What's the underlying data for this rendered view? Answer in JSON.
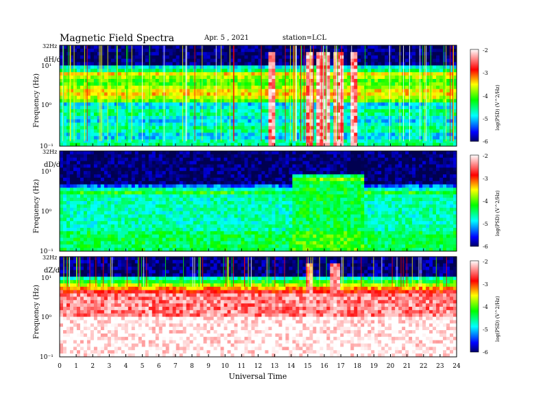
{
  "header": {
    "title": "Magnetic  Field  Spectra",
    "date": "Apr. 5  , 2021",
    "station": "station=LCL"
  },
  "colors": {
    "high": "#ff0000",
    "mid_high": "#ffff00",
    "mid": "#00ff00",
    "mid_low": "#00ffff",
    "low": "#0000ff",
    "background": "#000000"
  },
  "chart_data": [
    {
      "type": "heatmap",
      "panel_label": "dH/dt",
      "top_label": "32Hz",
      "ylabel": "Frequency  (Hz)",
      "y_ticks": [
        "10¹",
        "10⁰",
        "10⁻¹"
      ],
      "x_range": [
        0,
        24
      ],
      "colorbar": {
        "ticks": [
          "-2",
          "-3",
          "-4",
          "-5",
          "-6"
        ],
        "label": "log(PSD)  (V^2/Hz)",
        "range": [
          -6,
          -2
        ]
      },
      "disturbed_intervals": [
        [
          12.7,
          13.1
        ],
        [
          15.0,
          15.3
        ],
        [
          15.5,
          16.3
        ],
        [
          16.5,
          17.2
        ],
        [
          17.5,
          17.9
        ]
      ]
    },
    {
      "type": "heatmap",
      "panel_label": "dD/dt",
      "top_label": "32Hz",
      "ylabel": "Frequency  (Hz)",
      "y_ticks": [
        "10¹",
        "10⁰",
        "10⁻¹"
      ],
      "x_range": [
        0,
        24
      ],
      "colorbar": {
        "ticks": [
          "-2",
          "-3",
          "-4",
          "-5",
          "-6"
        ],
        "label": "log(PSD)  (V^2/Hz)",
        "range": [
          -6,
          -2
        ]
      },
      "disturbed_intervals": [
        [
          14.0,
          18.5
        ]
      ]
    },
    {
      "type": "heatmap",
      "panel_label": "dZ/dt",
      "top_label": "32Hz",
      "ylabel": "Frequency  (Hz)",
      "y_ticks": [
        "10¹",
        "10⁰",
        "10⁻¹"
      ],
      "x_range": [
        0,
        24
      ],
      "colorbar": {
        "ticks": [
          "-2",
          "-3",
          "-4",
          "-5",
          "-6"
        ],
        "label": "log(PSD)  (V^2/Hz)",
        "range": [
          -6,
          -2
        ]
      },
      "disturbed_intervals": [
        [
          15.0,
          15.3
        ],
        [
          16.4,
          16.9
        ]
      ]
    }
  ],
  "x_axis": {
    "label": "Universal  Time",
    "ticks": [
      "0",
      "1",
      "2",
      "3",
      "4",
      "5",
      "6",
      "7",
      "8",
      "9",
      "10",
      "11",
      "12",
      "13",
      "14",
      "15",
      "16",
      "17",
      "18",
      "19",
      "20",
      "21",
      "22",
      "23",
      "24"
    ]
  }
}
